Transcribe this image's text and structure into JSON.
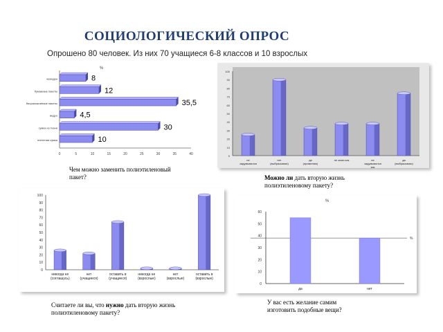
{
  "slide": {
    "title": "СОЦИОЛОГИЧЕСКИЙ ОПРОС",
    "subtitle": "Опрошено 80 человек. Из них 70 учащиеся 6-8 классов и 10 взрослых"
  },
  "captions": {
    "c1": "Чем можно заменить полиэтиленовый пакет?",
    "c2_bold": "Можно ли",
    "c2_rest": " дать вторую жизнь полиэтиленовому пакету?",
    "c3_pre": "Считаете ли вы, что ",
    "c3_bold": "нужно",
    "c3_post": " дать вторую жизнь полиэтиленовому пакету?",
    "c4": "У вас есть желание самим изготовить подобные вещи?"
  },
  "chart_data": [
    {
      "id": "replacement",
      "type": "bar",
      "orientation": "horizontal",
      "header_text": "%",
      "categories": [
        "чемодан",
        "бумажные пакеты",
        "биоразлагаемые пакеты",
        "ведро",
        "сумка из ткани",
        "плетеная сумка"
      ],
      "values": [
        8,
        12,
        35.5,
        4.5,
        30,
        10
      ],
      "value_labels": [
        "8",
        "12",
        "35,5",
        "4,5",
        "30",
        "10"
      ],
      "xlim": [
        0,
        40
      ],
      "x_ticks": [
        "0",
        "5",
        "10",
        "15",
        "20",
        "25",
        "30",
        "35",
        "40"
      ],
      "colors": {
        "bar": "#8c8cf0",
        "bar_dark": "#4848a8"
      }
    },
    {
      "id": "second_life_possible",
      "type": "bar",
      "categories": [
        "не задумывался",
        "нет (выбрасываю)",
        "да (применяю)",
        "не знаю как",
        "не задумывался как",
        "да (выбрасываю)"
      ],
      "values": [
        25,
        90,
        33,
        38,
        38,
        74
      ],
      "ylim": [
        0,
        100
      ],
      "y_ticks": [
        "0",
        "10",
        "20",
        "30",
        "40",
        "50",
        "60",
        "70",
        "80",
        "90",
        "100"
      ],
      "colors": {
        "bar": "#8c8cf0",
        "bar_dark": "#4848a8",
        "background": "#c0c0c0"
      }
    },
    {
      "id": "second_life_needed",
      "type": "bar",
      "categories": [
        "никогда не (соглашусь)",
        "нет (учащиеся)",
        "оставить в (учащиеся)",
        "никогда не (взрослые)",
        "нет (взрослые)",
        "оставить в (взрослые)"
      ],
      "values": [
        26,
        22,
        64,
        2,
        2,
        100
      ],
      "ylim": [
        0,
        100
      ],
      "y_ticks": [
        "0",
        "10",
        "20",
        "30",
        "40",
        "50",
        "60",
        "70",
        "80",
        "90",
        "100"
      ],
      "colors": {
        "bar": "#8c8cf0",
        "bar_dark": "#4848a8"
      }
    },
    {
      "id": "make_yourself",
      "type": "bar",
      "header_text": "%",
      "legend_text": "%",
      "categories": [
        "да",
        "нет"
      ],
      "values": [
        55,
        38
      ],
      "ylim": [
        0,
        60
      ],
      "y_ticks": [
        "0",
        "10",
        "20",
        "30",
        "40",
        "50",
        "60"
      ],
      "colors": {
        "bar": "#9999ff",
        "baseline": "#333333"
      }
    }
  ]
}
